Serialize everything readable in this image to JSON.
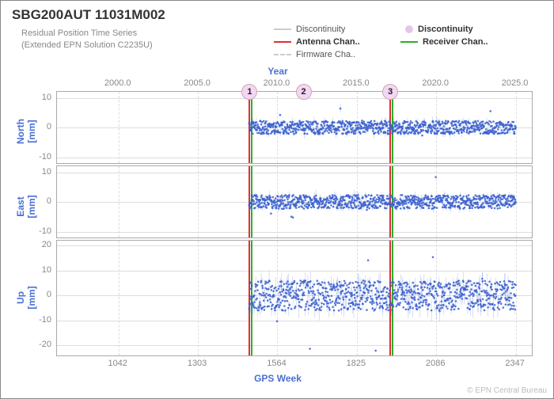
{
  "title": "SBG200AUT 11031M002",
  "subtitle_line1": "Residual Position Time Series",
  "subtitle_line2": "(Extended EPN Solution C2235U)",
  "top_axis_label": "Year",
  "bottom_axis_label": "GPS Week",
  "credit": "© EPN Central Bureau",
  "colors": {
    "text": "#333333",
    "muted": "#888888",
    "axis_blue": "#4a6fd4",
    "gridline": "#dddddd",
    "point": "#3a5fcf",
    "disc_red": "#e03030",
    "disc_green": "#2cae2c",
    "marker_fill": "#f5d6f5"
  },
  "legend": [
    {
      "label": "Discontinuity",
      "style": "line",
      "color": "#cccccc",
      "bold": false
    },
    {
      "label": "Discontinuity",
      "style": "dot",
      "color": "#e8c4e8",
      "bold": true
    },
    {
      "label": "Antenna Chan..",
      "style": "line",
      "color": "#e03030",
      "bold": true
    },
    {
      "label": "Receiver Chan..",
      "style": "line",
      "color": "#2cae2c",
      "bold": true
    },
    {
      "label": "Firmware Cha..",
      "style": "dash",
      "color": "#cccccc",
      "bold": false
    }
  ],
  "x_top_ticks": [
    "2000.0",
    "2005.0",
    "2010.0",
    "2015.0",
    "2020.0",
    "2025.0"
  ],
  "x_bot_ticks": [
    "1042",
    "1303",
    "1564",
    "1825",
    "2086",
    "2347"
  ],
  "x_range_weeks": [
    840,
    2400
  ],
  "x_tick_weeks": [
    1042,
    1303,
    1564,
    1825,
    2086,
    2347
  ],
  "panels": [
    {
      "name": "North",
      "unit": "[mm]",
      "ylim": [
        -12,
        12
      ],
      "yticks": [
        -10,
        0,
        10
      ],
      "noise_amp": 2.2
    },
    {
      "name": "East",
      "unit": "[mm]",
      "ylim": [
        -12,
        12
      ],
      "yticks": [
        -10,
        0,
        10
      ],
      "noise_amp": 2.3
    },
    {
      "name": "Up",
      "unit": "[mm]",
      "ylim": [
        -24,
        22
      ],
      "yticks": [
        -20,
        -10,
        0,
        10,
        20
      ],
      "noise_amp": 6.0
    }
  ],
  "data_week_range": [
    1471,
    2347
  ],
  "discontinuities_weeks": [
    1473,
    1935
  ],
  "markers": [
    {
      "label": "1",
      "week": 1473
    },
    {
      "label": "2",
      "week": 1650
    },
    {
      "label": "3",
      "week": 1935
    }
  ]
}
